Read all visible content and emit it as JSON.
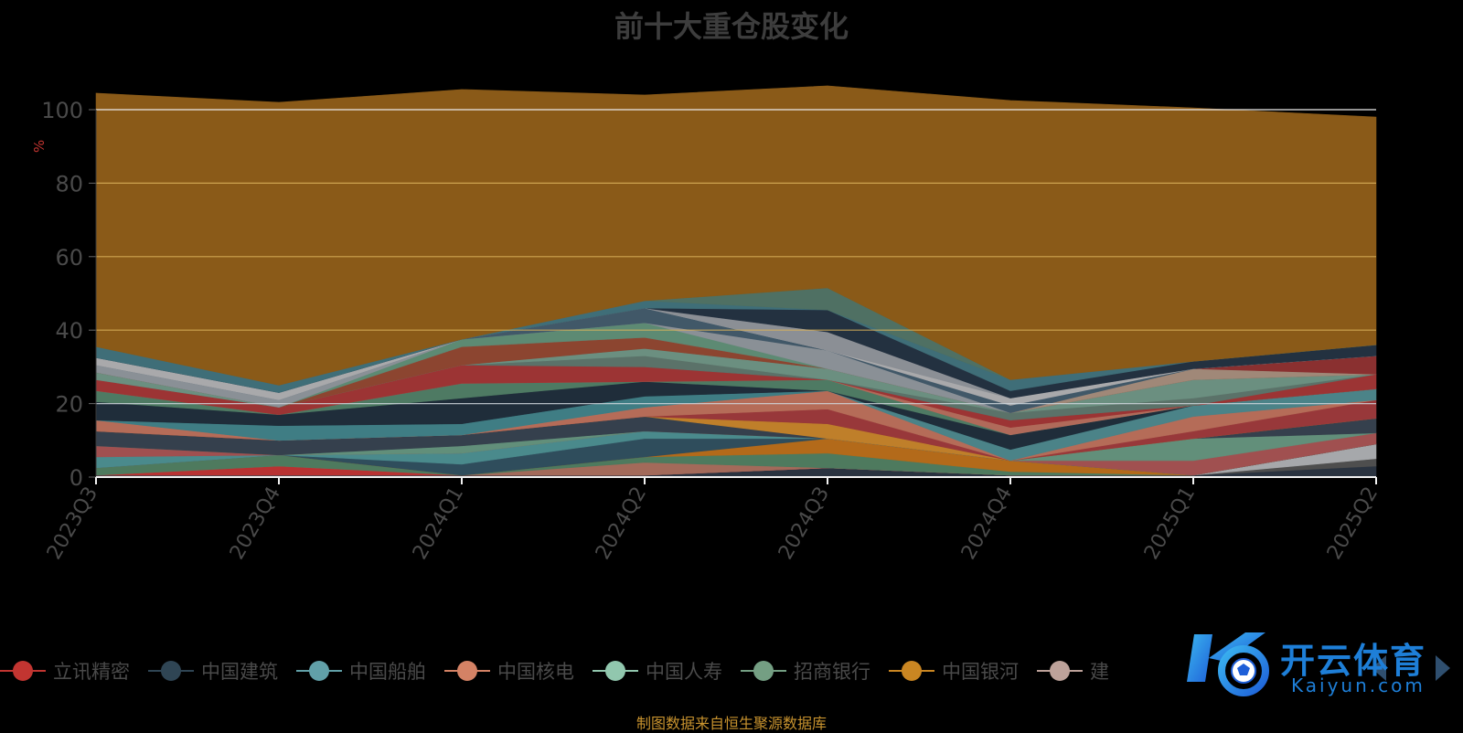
{
  "title": "前十大重仓股变化",
  "footer": "制图数据来自恒生聚源数据库",
  "watermark": {
    "text_cn": "开云体育",
    "text_en": "Kaiyun.com"
  },
  "chart_data": {
    "type": "area",
    "stacked": true,
    "title": "前十大重仓股变化",
    "xlabel": "",
    "ylabel": "%",
    "ylim": [
      0,
      100
    ],
    "yticks": [
      0,
      20,
      40,
      60,
      80,
      100
    ],
    "categories": [
      "2023Q3",
      "2023Q4",
      "2024Q1",
      "2024Q2",
      "2024Q3",
      "2024Q4",
      "2025Q1",
      "2025Q2"
    ],
    "grid": true,
    "legend_position": "bottom",
    "series": [
      {
        "name": "",
        "color": "#2a3340",
        "values": [
          0.5,
          0.5,
          0.5,
          0.5,
          2.5,
          0.5,
          0.5,
          3
        ]
      },
      {
        "name": "",
        "color": "#4e4e4e",
        "values": [
          0,
          0,
          0,
          0,
          0,
          0,
          0,
          2
        ]
      },
      {
        "name": "",
        "color": "#a6a8ab",
        "values": [
          0,
          0,
          0,
          0,
          0,
          0,
          0,
          4
        ]
      },
      {
        "name": "立讯精密",
        "color": "#b83232",
        "values": [
          0,
          2.5,
          0,
          0,
          0,
          0,
          0,
          0
        ]
      },
      {
        "name": "",
        "color": "#a36a5a",
        "values": [
          0,
          0,
          0,
          3.5,
          0,
          0,
          0,
          0
        ]
      },
      {
        "name": "",
        "color": "#4e7a5e",
        "values": [
          2,
          3,
          0,
          1.5,
          4,
          1,
          0,
          0
        ]
      },
      {
        "name": "",
        "color": "#b36a1a",
        "values": [
          0,
          0,
          0,
          0,
          4,
          3,
          0,
          0
        ]
      },
      {
        "name": "",
        "color": "#2f4d5c",
        "values": [
          0,
          0,
          3,
          5,
          0,
          0,
          0,
          0
        ]
      },
      {
        "name": "",
        "color": "#4a8a8c",
        "values": [
          3,
          0,
          3,
          2,
          0,
          0,
          0,
          0
        ]
      },
      {
        "name": "",
        "color": "#a05050",
        "values": [
          3,
          0,
          0,
          0,
          0,
          0,
          4,
          3
        ]
      },
      {
        "name": "",
        "color": "#628f7a",
        "values": [
          0,
          0,
          2,
          0,
          0,
          0,
          6,
          0
        ]
      },
      {
        "name": "",
        "color": "#35404d",
        "values": [
          4,
          4,
          3,
          4,
          0,
          0,
          0,
          4
        ]
      },
      {
        "name": "",
        "color": "#bf7f2a",
        "values": [
          0,
          0,
          0,
          0,
          4,
          0,
          0,
          0
        ]
      },
      {
        "name": "",
        "color": "#98383a",
        "values": [
          0,
          0,
          0,
          0,
          4,
          0,
          2,
          5
        ]
      },
      {
        "name": "",
        "color": "#b56c58",
        "values": [
          3,
          0,
          0,
          2.5,
          5,
          0,
          4,
          0
        ]
      },
      {
        "name": "",
        "color": "#4b8388",
        "values": [
          0,
          0,
          0,
          0,
          0,
          3,
          3,
          3
        ]
      },
      {
        "name": "中国船舶",
        "color": "#3f7d84",
        "values": [
          0,
          4,
          3,
          3,
          0,
          0,
          0,
          0
        ]
      },
      {
        "name": "中国建筑",
        "color": "#1f2d3a",
        "values": [
          5,
          3,
          7,
          4,
          0,
          4,
          0,
          0
        ]
      },
      {
        "name": "中国人寿",
        "color": "#4e7a63",
        "values": [
          3,
          0,
          4,
          0,
          3,
          0,
          0,
          0
        ]
      },
      {
        "name": "中国核电",
        "color": "#b06a5a",
        "values": [
          0,
          0,
          0,
          0,
          0,
          2,
          0,
          0
        ]
      },
      {
        "name": "",
        "color": "#9c3434",
        "values": [
          3,
          2,
          5,
          4,
          0,
          2,
          0,
          4
        ]
      },
      {
        "name": "",
        "color": "#5b7269",
        "values": [
          0,
          0,
          0,
          3,
          0,
          2,
          2,
          0
        ]
      },
      {
        "name": "",
        "color": "#6b8f80",
        "values": [
          2,
          0,
          0,
          2,
          3,
          0,
          5,
          0
        ]
      },
      {
        "name": "",
        "color": "#8c4530",
        "values": [
          0,
          0,
          5,
          3,
          0,
          0,
          0,
          0
        ]
      },
      {
        "name": "",
        "color": "#a08878",
        "values": [
          0,
          0,
          0,
          0,
          0,
          0,
          3,
          0
        ]
      },
      {
        "name": "",
        "color": "#8a3030",
        "values": [
          0,
          0,
          0,
          0,
          0,
          0,
          0,
          5
        ]
      },
      {
        "name": "招商银行",
        "color": "#5d8a73",
        "values": [
          0,
          0,
          2,
          4,
          0,
          0,
          0,
          0
        ]
      },
      {
        "name": "",
        "color": "#8a9096",
        "values": [
          2,
          2,
          0,
          0,
          5,
          0,
          0,
          0
        ]
      },
      {
        "name": "",
        "color": "#415868",
        "values": [
          0,
          0,
          0,
          4,
          0,
          2,
          0,
          0
        ]
      },
      {
        "name": "",
        "color": "#a9a9ab",
        "values": [
          2,
          2,
          0,
          0,
          0,
          2,
          0,
          0
        ]
      },
      {
        "name": "",
        "color": "#8b8f95",
        "values": [
          0,
          0,
          0,
          0,
          5,
          0,
          0,
          0
        ]
      },
      {
        "name": "",
        "color": "#233140",
        "values": [
          0,
          0,
          0,
          0,
          6,
          2,
          2,
          3
        ]
      },
      {
        "name": "",
        "color": "#3f6e78",
        "values": [
          3,
          2,
          0,
          2,
          0,
          3,
          0,
          0
        ]
      },
      {
        "name": "",
        "color": "#4f7063",
        "values": [
          0,
          0,
          0,
          0,
          6,
          0,
          0,
          0
        ]
      },
      {
        "name": "中国银河",
        "color": "#8a5a18",
        "values": [
          69,
          77,
          68,
          56,
          55,
          76,
          69,
          62
        ]
      }
    ],
    "legend": [
      {
        "name": "立讯精密",
        "color": "#c23531"
      },
      {
        "name": "中国建筑",
        "color": "#2f4554"
      },
      {
        "name": "中国船舶",
        "color": "#61a0a8"
      },
      {
        "name": "中国核电",
        "color": "#d48265"
      },
      {
        "name": "中国人寿",
        "color": "#91c7ae"
      },
      {
        "name": "招商银行",
        "color": "#749f83"
      },
      {
        "name": "中国银河",
        "color": "#ca8622"
      },
      {
        "name": "建",
        "color": "#bda29a"
      }
    ]
  }
}
